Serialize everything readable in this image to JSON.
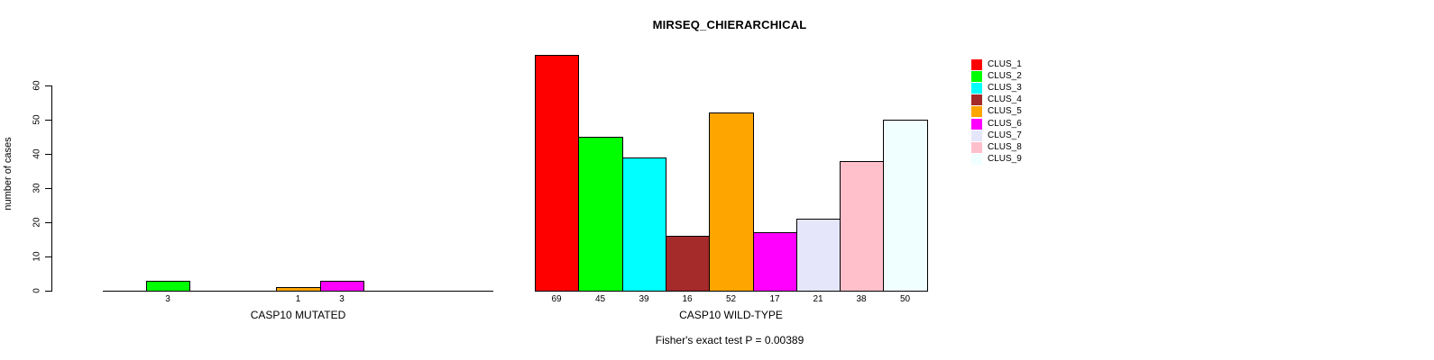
{
  "title": "MIRSEQ_CHIERARCHICAL",
  "y_axis": {
    "label": "number of cases",
    "ticks": [
      "0",
      "10",
      "20",
      "30",
      "40",
      "50",
      "60"
    ]
  },
  "legend": {
    "position": "right",
    "items": [
      {
        "label": "CLUS_1",
        "color": "#FF0000"
      },
      {
        "label": "CLUS_2",
        "color": "#00FF00"
      },
      {
        "label": "CLUS_3",
        "color": "#00FFFF"
      },
      {
        "label": "CLUS_4",
        "color": "#A52A2A"
      },
      {
        "label": "CLUS_5",
        "color": "#FFA500"
      },
      {
        "label": "CLUS_6",
        "color": "#FF00FF"
      },
      {
        "label": "CLUS_7",
        "color": "#E6E6FA"
      },
      {
        "label": "CLUS_8",
        "color": "#FFC0CB"
      },
      {
        "label": "CLUS_9",
        "color": "#F0FFFF"
      }
    ]
  },
  "chart_data": [
    {
      "type": "bar",
      "panel": "mutated",
      "title": "MIRSEQ_CHIERARCHICAL",
      "xlabel": "CASP10 MUTATED",
      "ylabel": "number of cases",
      "categories": [
        "CLUS_1",
        "CLUS_2",
        "CLUS_3",
        "CLUS_4",
        "CLUS_5",
        "CLUS_6",
        "CLUS_7",
        "CLUS_8",
        "CLUS_9"
      ],
      "values": [
        0,
        3,
        0,
        0,
        1,
        3,
        0,
        0,
        0
      ],
      "bar_labels": [
        "",
        "3",
        "",
        "",
        "1",
        "3",
        "",
        "",
        ""
      ],
      "ylim": [
        0,
        69
      ],
      "yticks": [
        0,
        10,
        20,
        30,
        40,
        50,
        60
      ],
      "grid": false,
      "legend_position": "right"
    },
    {
      "type": "bar",
      "panel": "wild-type",
      "title": "MIRSEQ_CHIERARCHICAL",
      "xlabel": "CASP10 WILD-TYPE",
      "ylabel": "number of cases",
      "categories": [
        "CLUS_1",
        "CLUS_2",
        "CLUS_3",
        "CLUS_4",
        "CLUS_5",
        "CLUS_6",
        "CLUS_7",
        "CLUS_8",
        "CLUS_9"
      ],
      "values": [
        69,
        45,
        39,
        16,
        52,
        17,
        21,
        38,
        50
      ],
      "bar_labels": [
        "69",
        "45",
        "39",
        "16",
        "52",
        "17",
        "21",
        "38",
        "50"
      ],
      "ylim": [
        0,
        69
      ],
      "yticks": [
        0,
        10,
        20,
        30,
        40,
        50,
        60
      ],
      "grid": false,
      "legend_position": "right"
    }
  ],
  "footer": {
    "note": "Fisher's exact test P = 0.00389"
  }
}
